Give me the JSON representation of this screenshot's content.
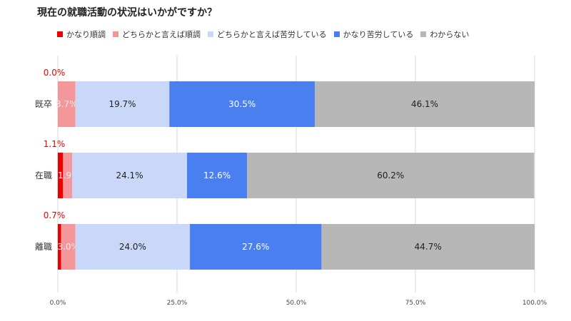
{
  "chart_data": {
    "type": "bar",
    "orientation": "horizontal",
    "stacked": true,
    "title": "現在の就職活動の状況はいかがですか？",
    "categories": [
      "既卒",
      "在職",
      "離職"
    ],
    "series": [
      {
        "name": "かなり順調",
        "color": "#ea0000",
        "values": [
          0.0,
          1.1,
          0.7
        ],
        "labels": [
          "0.0%",
          "1.1%",
          "0.7%"
        ]
      },
      {
        "name": "どちらかと言えば順調",
        "color": "#f4979a",
        "values": [
          3.7,
          1.9,
          3.0
        ],
        "labels": [
          "3.7%",
          "1.9%",
          "3.0%"
        ]
      },
      {
        "name": "どちらかと言えば苦労している",
        "color": "#c9d8f8",
        "values": [
          19.7,
          24.1,
          24.0
        ],
        "labels": [
          "19.7%",
          "24.1%",
          "24.0%"
        ]
      },
      {
        "name": "かなり苦労している",
        "color": "#4a7ff0",
        "values": [
          30.5,
          12.6,
          27.6
        ],
        "labels": [
          "30.5%",
          "12.6%",
          "27.6%"
        ]
      },
      {
        "name": "わからない",
        "color": "#b7b7b7",
        "values": [
          46.1,
          60.2,
          44.7
        ],
        "labels": [
          "46.1%",
          "60.2%",
          "44.7%"
        ]
      }
    ],
    "xlim": [
      0,
      100
    ],
    "xticks": [
      "0.0%",
      "25.0%",
      "50.0%",
      "75.0%",
      "100.0%"
    ],
    "grid": true,
    "legend_position": "top"
  }
}
